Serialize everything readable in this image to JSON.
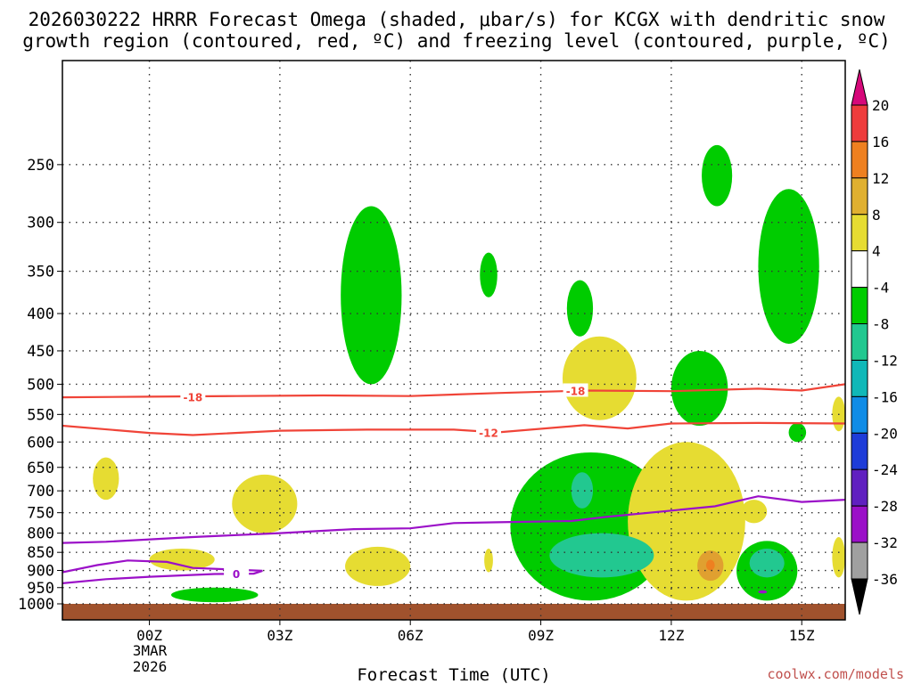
{
  "colors": {
    "temperature_contour": "#f04438",
    "freezing_contour": "#9b10c8",
    "ground": "#a0522d",
    "omega_green": "#00cc00",
    "omega_yellow": "#e6dc32",
    "credit": "#c0504d"
  },
  "chart_data": {
    "type": "heatmap",
    "title_lines": [
      "2026030222 HRRR Forecast Omega (shaded, μbar/s) for KCGX with dendritic snow",
      "growth region (contoured, red, ºC) and freezing level (contoured, purple, ºC)"
    ],
    "xlabel": "Forecast Time (UTC)",
    "credit": "coolwx.com/models",
    "x_ticks": [
      "00Z",
      "03Z",
      "06Z",
      "09Z",
      "12Z",
      "15Z"
    ],
    "x_tick_hours": [
      0,
      3,
      6,
      9,
      12,
      15
    ],
    "x_date_label": [
      "3MAR",
      "2026"
    ],
    "xlim_hours": [
      -2,
      16
    ],
    "y_ticks": [
      250,
      300,
      350,
      400,
      450,
      500,
      550,
      600,
      650,
      700,
      750,
      800,
      850,
      900,
      950,
      1000
    ],
    "ylim_mb": [
      1000,
      180
    ],
    "y_scale": "log",
    "grid": true,
    "colorbar": {
      "labels": [
        20,
        16,
        12,
        8,
        4,
        -4,
        -8,
        -12,
        -16,
        -20,
        -24,
        -28,
        -32,
        -36
      ],
      "colors": [
        "#d6087a",
        "#ee3c3c",
        "#ee8020",
        "#e0b030",
        "#e6dc32",
        "#ffffff",
        "#00cc00",
        "#22c890",
        "#10b8b8",
        "#108ce6",
        "#1e3cd8",
        "#6020c0",
        "#9b10c8",
        "#a0a0a0",
        "#000000"
      ],
      "units": "μbar/s"
    },
    "contours": [
      {
        "label": "-18",
        "color": "red",
        "points": [
          [
            -2,
            521
          ],
          [
            0,
            520
          ],
          [
            2,
            519
          ],
          [
            4,
            518
          ],
          [
            6,
            519
          ],
          [
            8,
            514
          ],
          [
            10,
            510
          ],
          [
            12,
            511
          ],
          [
            14,
            507
          ],
          [
            15,
            510
          ],
          [
            16,
            500
          ]
        ]
      },
      {
        "label": "-12",
        "color": "red",
        "points": [
          [
            -2,
            570
          ],
          [
            0,
            583
          ],
          [
            1,
            587
          ],
          [
            3,
            579
          ],
          [
            5,
            577
          ],
          [
            7,
            577
          ],
          [
            8,
            582
          ],
          [
            10,
            569
          ],
          [
            11,
            575
          ],
          [
            12,
            566
          ],
          [
            14,
            565
          ],
          [
            16,
            566
          ]
        ]
      },
      {
        "label": "0",
        "color": "purple",
        "points": [
          [
            -2,
            825
          ],
          [
            -1,
            822
          ],
          [
            1,
            810
          ],
          [
            3,
            800
          ],
          [
            4.7,
            790
          ],
          [
            6,
            788
          ],
          [
            7,
            775
          ],
          [
            8,
            773
          ],
          [
            9.7,
            770
          ],
          [
            10.5,
            760
          ],
          [
            12,
            745
          ],
          [
            13,
            735
          ],
          [
            14,
            712
          ],
          [
            15,
            725
          ],
          [
            16,
            720
          ]
        ]
      },
      {
        "label": "0",
        "color": "purple",
        "points": [
          [
            -2,
            905
          ],
          [
            -1.2,
            885
          ],
          [
            -0.5,
            872
          ],
          [
            0.4,
            876
          ],
          [
            1,
            893
          ],
          [
            2.6,
            901
          ],
          [
            2.4,
            909
          ],
          [
            1.5,
            910
          ],
          [
            0,
            918
          ],
          [
            -1,
            925
          ],
          [
            -2,
            937
          ]
        ]
      }
    ],
    "shaded_regions": [
      {
        "value": "-4 to -8",
        "color": "green",
        "name": "omega-green",
        "hours": [
          4.4,
          5.8
        ],
        "mb": [
          285,
          500
        ]
      },
      {
        "value": "-4 to -8",
        "color": "green",
        "name": "omega-green",
        "hours": [
          7.6,
          8.0
        ],
        "mb": [
          330,
          380
        ]
      },
      {
        "value": "-4 to -8",
        "color": "green",
        "name": "omega-green",
        "hours": [
          9.6,
          10.2
        ],
        "mb": [
          360,
          430
        ]
      },
      {
        "value": "-4 to -8",
        "color": "green",
        "name": "omega-green",
        "hours": [
          12.7,
          13.4
        ],
        "mb": [
          235,
          285
        ]
      },
      {
        "value": "-4 to -8",
        "color": "green",
        "name": "omega-green",
        "hours": [
          14.0,
          15.4
        ],
        "mb": [
          270,
          440
        ]
      },
      {
        "value": "-4 to -8",
        "color": "green",
        "name": "omega-green",
        "hours": [
          12.0,
          13.3
        ],
        "mb": [
          450,
          570
        ]
      },
      {
        "value": "-4 to -8",
        "color": "green",
        "name": "omega-green",
        "hours": [
          14.7,
          15.1
        ],
        "mb": [
          565,
          600
        ]
      },
      {
        "value": "-4 to -8",
        "color": "green",
        "name": "omega-green",
        "hours": [
          8.3,
          12.0
        ],
        "mb": [
          620,
          990
        ]
      },
      {
        "value": "-4 to -8",
        "color": "green",
        "name": "omega-green",
        "hours": [
          13.5,
          14.9
        ],
        "mb": [
          820,
          990
        ]
      },
      {
        "value": "-4 to -8",
        "color": "green",
        "name": "omega-green",
        "hours": [
          0.5,
          2.5
        ],
        "mb": [
          950,
          995
        ]
      },
      {
        "value": "4 to 8",
        "color": "yellow",
        "name": "omega-yellow",
        "hours": [
          -1.3,
          -0.7
        ],
        "mb": [
          630,
          720
        ]
      },
      {
        "value": "4 to 8",
        "color": "yellow",
        "name": "omega-yellow",
        "hours": [
          1.9,
          3.4
        ],
        "mb": [
          665,
          800
        ]
      },
      {
        "value": "4 to 8",
        "color": "yellow",
        "name": "omega-yellow",
        "hours": [
          0.0,
          1.5
        ],
        "mb": [
          840,
          900
        ]
      },
      {
        "value": "4 to 8",
        "color": "yellow",
        "name": "omega-yellow",
        "hours": [
          4.5,
          6.0
        ],
        "mb": [
          835,
          945
        ]
      },
      {
        "value": "4 to 8",
        "color": "yellow",
        "name": "omega-yellow",
        "hours": [
          7.7,
          7.9
        ],
        "mb": [
          840,
          905
        ]
      },
      {
        "value": "4 to 8",
        "color": "yellow",
        "name": "omega-yellow",
        "hours": [
          9.5,
          11.2
        ],
        "mb": [
          430,
          560
        ]
      },
      {
        "value": "4 to 8",
        "color": "yellow",
        "name": "omega-yellow",
        "hours": [
          11.0,
          13.7
        ],
        "mb": [
          600,
          990
        ]
      },
      {
        "value": "4 to 8",
        "color": "yellow",
        "name": "omega-yellow",
        "hours": [
          13.6,
          14.2
        ],
        "mb": [
          720,
          775
        ]
      },
      {
        "value": "4 to 8",
        "color": "yellow",
        "name": "omega-yellow",
        "hours": [
          15.7,
          16.0
        ],
        "mb": [
          520,
          580
        ]
      },
      {
        "value": "4 to 8",
        "color": "yellow",
        "name": "omega-yellow",
        "hours": [
          15.7,
          16.0
        ],
        "mb": [
          810,
          920
        ]
      },
      {
        "value": "-8 to -12",
        "color": "teal",
        "name": "omega-teal",
        "hours": [
          9.2,
          11.6
        ],
        "mb": [
          800,
          920
        ]
      },
      {
        "value": "-8 to -12",
        "color": "teal",
        "name": "omega-teal",
        "hours": [
          9.7,
          10.2
        ],
        "mb": [
          660,
          740
        ]
      },
      {
        "value": "-8 to -12",
        "color": "teal",
        "name": "omega-teal",
        "hours": [
          13.8,
          14.6
        ],
        "mb": [
          840,
          920
        ]
      },
      {
        "value": "8 to 12",
        "color": "orange",
        "name": "omega-orange",
        "hours": [
          12.6,
          13.2
        ],
        "mb": [
          845,
          930
        ]
      },
      {
        "value": "12 to 16",
        "color": "deep-orange",
        "name": "omega-dark-orange",
        "hours": [
          12.8,
          13.0
        ],
        "mb": [
          870,
          900
        ]
      },
      {
        "value": "-28 to -32",
        "color": "purple",
        "name": "omega-purple",
        "hours": [
          14.0,
          14.2
        ],
        "mb": [
          958,
          968
        ]
      }
    ],
    "ground_mb": 1000
  }
}
